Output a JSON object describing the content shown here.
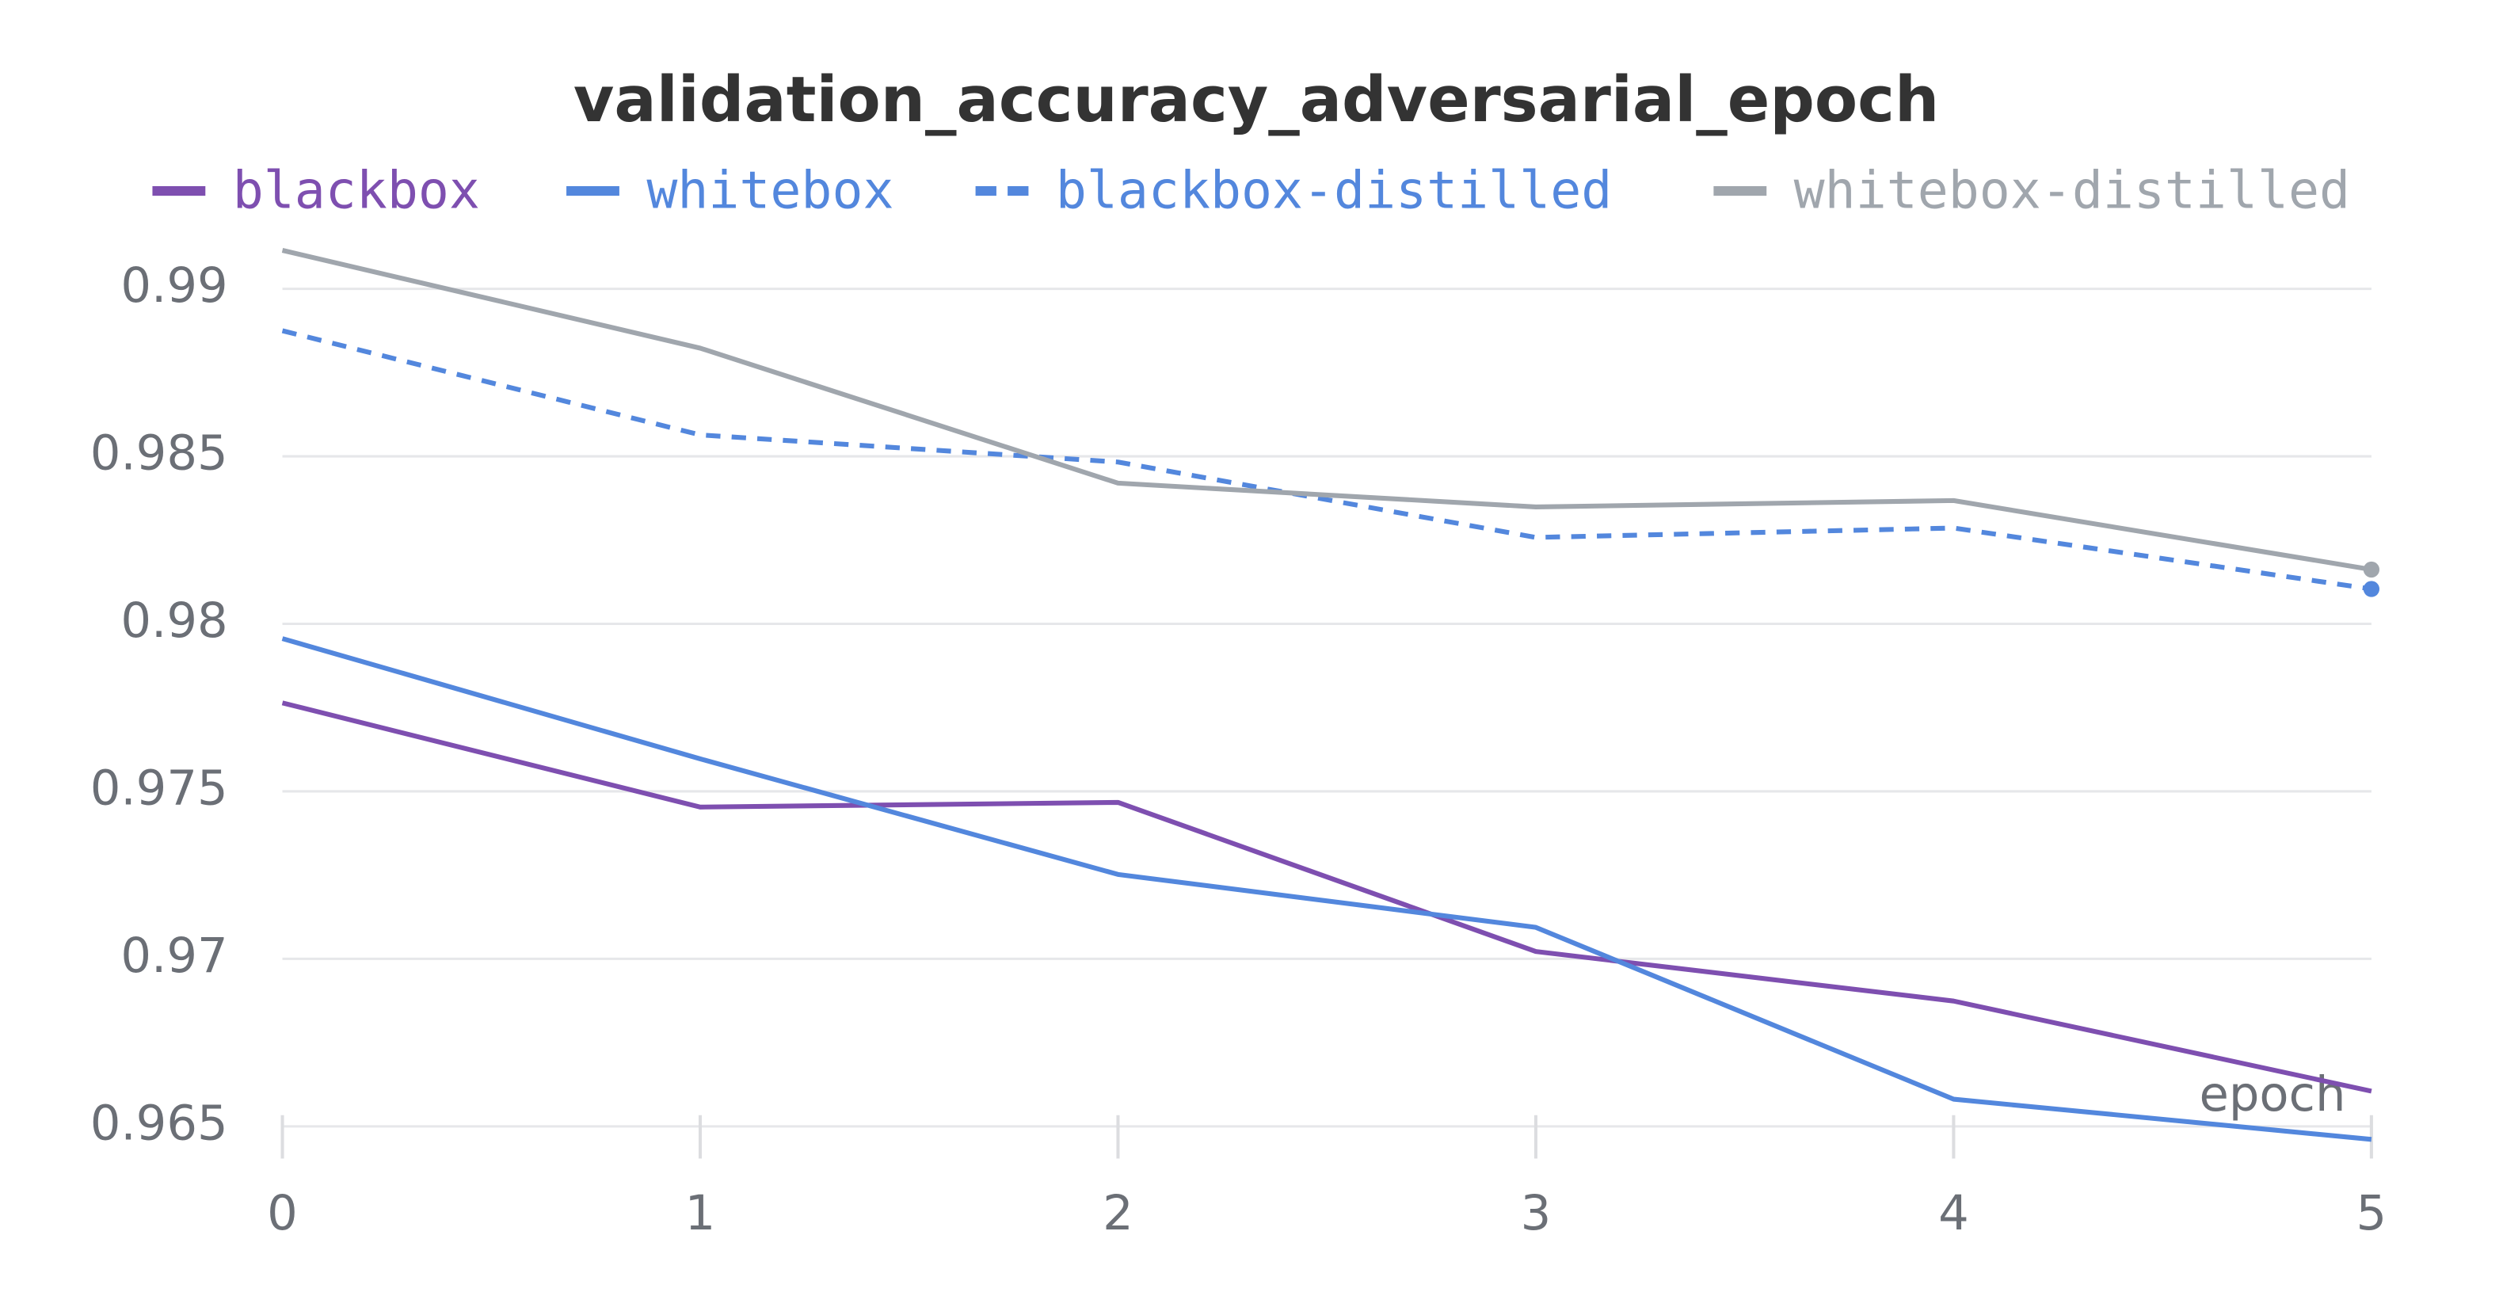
{
  "chart_data": {
    "type": "line",
    "title": "validation_accuracy_adversarial_epoch",
    "x_label": "epoch",
    "x": [
      0,
      1,
      2,
      3,
      4,
      5
    ],
    "xlim": [
      0,
      5
    ],
    "xticks": [
      0,
      1,
      2,
      3,
      4,
      5
    ],
    "ylim": [
      0.96423,
      0.99115
    ],
    "yticks": [
      0.965,
      0.97,
      0.975,
      0.98,
      0.985,
      0.99
    ],
    "grid": true,
    "legend": "top",
    "series": [
      {
        "name": "blackbox",
        "color": "#7e4fb0",
        "dashed": false,
        "end_marker": false,
        "values": [
          0.97764,
          0.97453,
          0.97467,
          0.97022,
          0.96874,
          0.96605
        ]
      },
      {
        "name": "whitebox",
        "color": "#5387dd",
        "dashed": false,
        "end_marker": false,
        "values": [
          0.97956,
          0.97597,
          0.97252,
          0.97094,
          0.96581,
          0.96461
        ]
      },
      {
        "name": "blackbox-distilled",
        "color": "#5387dd",
        "dashed": true,
        "end_marker": true,
        "values": [
          0.98875,
          0.98564,
          0.98483,
          0.98258,
          0.98286,
          0.98104
        ]
      },
      {
        "name": "whitebox-distilled",
        "color": "#a0a6ad",
        "dashed": false,
        "end_marker": true,
        "values": [
          0.99115,
          0.98823,
          0.9842,
          0.98349,
          0.98368,
          0.98162
        ]
      }
    ]
  }
}
